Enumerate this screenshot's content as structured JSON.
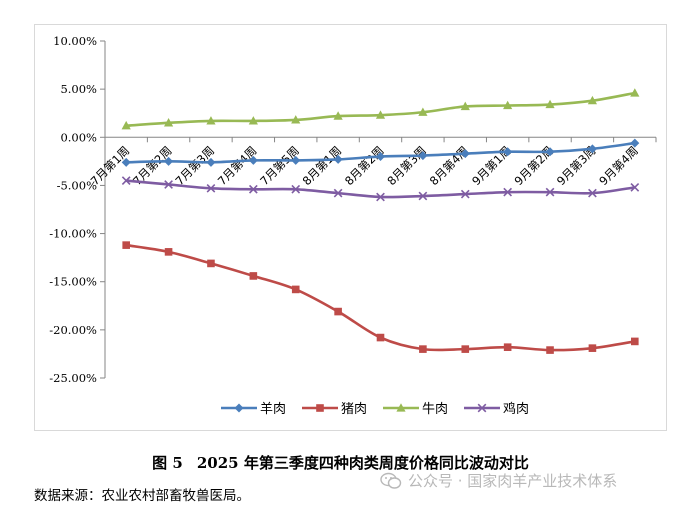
{
  "chart_data": {
    "type": "line",
    "categories": [
      "7月第1周",
      "7月第2周",
      "7月第3周",
      "7月第4周",
      "7月第5周",
      "8月第1周",
      "8月第2周",
      "8月第3周",
      "8月第4周",
      "9月第1周",
      "9月第2周",
      "9月第3周",
      "9月第4周"
    ],
    "y_tick_labels": [
      "10.00%",
      "5.00%",
      "0.00%",
      "-5.00%",
      "-10.00%",
      "-15.00%",
      "-20.00%",
      "-25.00%"
    ],
    "ylim": [
      -25,
      10
    ],
    "y_step": 5,
    "series": [
      {
        "name": "羊肉",
        "color": "#4a7ebb",
        "marker": "diamond",
        "values": [
          -2.6,
          -2.5,
          -2.6,
          -2.4,
          -2.4,
          -2.3,
          -2.0,
          -1.9,
          -1.7,
          -1.5,
          -1.5,
          -1.2,
          -0.6
        ]
      },
      {
        "name": "猪肉",
        "color": "#be4b48",
        "marker": "square",
        "values": [
          -11.2,
          -11.9,
          -13.1,
          -14.4,
          -15.8,
          -18.1,
          -20.8,
          -22.0,
          -22.0,
          -21.8,
          -22.1,
          -21.9,
          -21.2
        ]
      },
      {
        "name": "牛肉",
        "color": "#98b954",
        "marker": "triangle",
        "values": [
          1.2,
          1.5,
          1.7,
          1.7,
          1.8,
          2.2,
          2.3,
          2.6,
          3.2,
          3.3,
          3.4,
          3.8,
          4.6
        ]
      },
      {
        "name": "鸡肉",
        "color": "#7e5ca2",
        "marker": "x",
        "values": [
          -4.5,
          -4.9,
          -5.3,
          -5.4,
          -5.4,
          -5.8,
          -6.2,
          -6.1,
          -5.9,
          -5.7,
          -5.7,
          -5.8,
          -5.2
        ]
      }
    ]
  },
  "caption": {
    "figure_no": "图 5",
    "title": "2025 年第三季度四种肉类周度价格同比波动对比"
  },
  "source": "数据来源：农业农村部畜牧兽医局。",
  "watermark": "公众号 · 国家肉羊产业技术体系"
}
